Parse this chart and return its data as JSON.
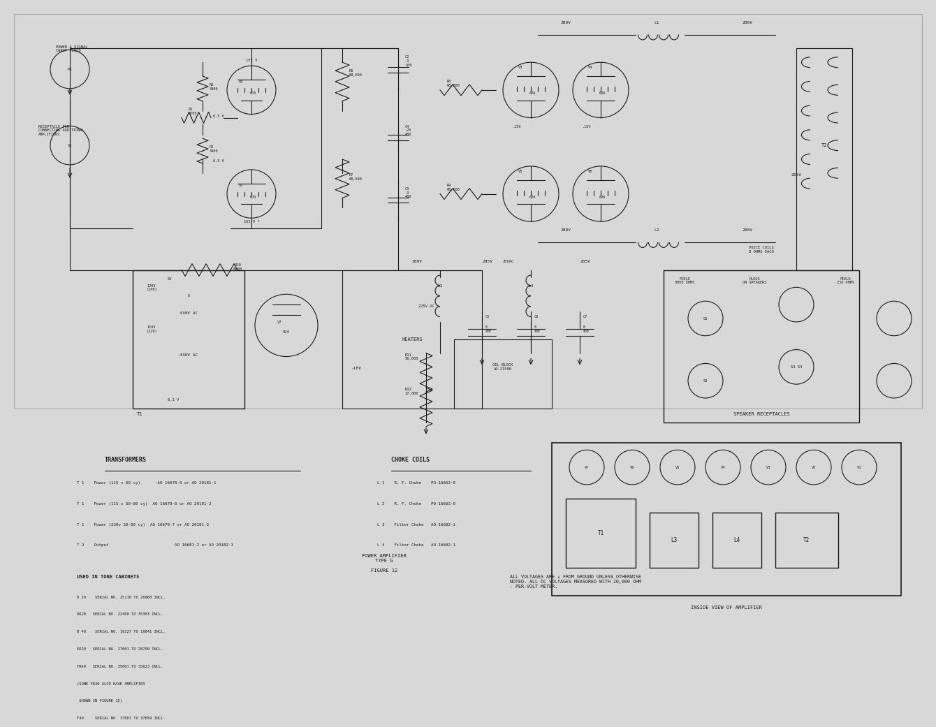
{
  "bg_color": "#d8d8d8",
  "title": "POWER AMPLIFIER\nTYPE G\n\nFIGURE 12",
  "transformers_title": "TRANSFORMERS",
  "transformers_lines": [
    "T 1    Power (115 v 60 cy)      -AO 16670-5 or AO 20181-1",
    "T 1    Power (115 v 50-60 cy)  AO 16670-6 or AO 20181-2",
    "T 1    Power (230v 50-60 cy)  AO 16670-7 or AO 20181-3",
    "T 2    Output                           AO 16681-2 or AO 20182-1"
  ],
  "choke_title": "CHOKE COILS",
  "choke_lines": [
    "L 1    R. F. Choke    PO-16663-0",
    "L 2    R. F. Choke    PO-16663-0",
    "L 3    Filter Choke   AO-16682-1",
    "L 4    Filter Choke   AO-16682-1"
  ],
  "used_in_title": "USED IN TONE CABINETS",
  "used_in_lines": [
    "D 20    SERIAL NO. 25110 TO 26968 INCL.",
    "DR20   SERIAL NO. 22400 TO 35303 INCL.",
    "B 40    SERIAL NO. 19327 TO 19841 INCL.",
    "ER20   SERIAL NO. 27001 TO 28709 INCL.",
    "FR40   SERIAL NO. 35001 TO 35623 INCL.",
    "(SOME FR40 ALSO HAVE AMPLIFIER",
    " SHOWN IN FIGURE 15)",
    "F40     SERIAL NO. 37001 TO 37659 INCL."
  ],
  "voltages_text": "ALL VOLTAGES ARE + FROM GROUND UNLESS OTHERWISE\nNOTED. ALL DC VOLTAGES MEASURED WITH 20,000 OHM\n- PER-VOLT METER.",
  "inside_view_label": "INSIDE VIEW OF AMPLIFIER",
  "inside_view_tubes": [
    "V7",
    "V6",
    "V5",
    "V4",
    "V3",
    "V2",
    "V1"
  ],
  "inside_view_boxes": [
    "T1",
    "L3",
    "L4",
    "T2"
  ],
  "speaker_label": "SPEAKER RECEPTACLES",
  "left_label1": "POWER & SIGNAL\nINPUT PLUGS",
  "left_label2": "RECEPTACLE FOR\nCONNECTING ADDITIONAL\nAMPLIFIERS",
  "voice_coils_label": "VOICE COILS\n8 OHMS EACH",
  "field_label1": "FIELD\n8000 OHMS",
  "field_label2": "FIELD\n250 OHMS",
  "plugs_label": "PLUGS\nON SPEAKERS",
  "oil_block_label": "OIL BLOCK\nAO-21590"
}
